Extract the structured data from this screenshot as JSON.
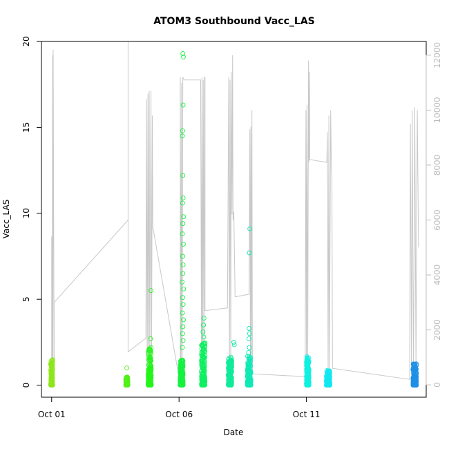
{
  "chart_data": {
    "type": "scatter",
    "title": "ATOM3 Southbound Vacc_LAS",
    "xlabel": "Date",
    "ylabel": "Vacc_LAS",
    "x_ticks": [
      "Oct 01",
      "Oct 06",
      "Oct 11"
    ],
    "x_tick_days": [
      1,
      6,
      11
    ],
    "xlim": [
      0.6,
      15.7
    ],
    "ylim": [
      -0.7,
      20
    ],
    "y_ticks": [
      0,
      5,
      10,
      15,
      20
    ],
    "y2_ticks": [
      0,
      2000,
      4000,
      6000,
      8000,
      10000,
      12000
    ],
    "y2lim": [
      -450,
      12500
    ],
    "grid": false,
    "scatter_clusters": [
      {
        "day": 1.0,
        "width": 0.07,
        "max": 1.5,
        "color": "#8ee619"
      },
      {
        "day": 3.95,
        "width": 0.08,
        "max": 0.5,
        "color": "#52f01a"
      },
      {
        "day": 4.85,
        "width": 0.12,
        "max": 2.2,
        "color": "#24f51a"
      },
      {
        "day": 6.1,
        "width": 0.12,
        "max": 1.5,
        "color": "#15f240"
      },
      {
        "day": 6.95,
        "width": 0.14,
        "max": 2.5,
        "color": "#10ef62"
      },
      {
        "day": 8.0,
        "width": 0.14,
        "max": 1.7,
        "color": "#10eb99"
      },
      {
        "day": 8.75,
        "width": 0.14,
        "max": 1.7,
        "color": "#10e9b5"
      },
      {
        "day": 11.05,
        "width": 0.1,
        "max": 1.6,
        "color": "#10f0e0"
      },
      {
        "day": 11.85,
        "width": 0.14,
        "max": 0.85,
        "color": "#10e8f0"
      },
      {
        "day": 15.25,
        "width": 0.14,
        "max": 1.3,
        "color": "#1e90e6"
      }
    ],
    "scatter_outliers": [
      {
        "day": 4.9,
        "y": 5.5,
        "color": "#24f51a"
      },
      {
        "day": 4.88,
        "y": 2.7,
        "color": "#24f51a"
      },
      {
        "day": 6.15,
        "y": 19.3,
        "color": "#15f240"
      },
      {
        "day": 6.17,
        "y": 19.1,
        "color": "#15f240"
      },
      {
        "day": 6.16,
        "y": 16.3,
        "color": "#15f240"
      },
      {
        "day": 6.14,
        "y": 14.8,
        "color": "#15f240"
      },
      {
        "day": 6.13,
        "y": 14.5,
        "color": "#15f240"
      },
      {
        "day": 6.15,
        "y": 12.2,
        "color": "#15f240"
      },
      {
        "day": 6.16,
        "y": 10.9,
        "color": "#15f240"
      },
      {
        "day": 6.14,
        "y": 10.6,
        "color": "#15f240"
      },
      {
        "day": 6.18,
        "y": 9.8,
        "color": "#15f240"
      },
      {
        "day": 6.15,
        "y": 9.4,
        "color": "#15f240"
      },
      {
        "day": 6.13,
        "y": 8.8,
        "color": "#15f240"
      },
      {
        "day": 6.17,
        "y": 8.2,
        "color": "#15f240"
      },
      {
        "day": 6.14,
        "y": 7.5,
        "color": "#15f240"
      },
      {
        "day": 6.16,
        "y": 7.0,
        "color": "#15f240"
      },
      {
        "day": 6.15,
        "y": 6.5,
        "color": "#15f240"
      },
      {
        "day": 6.12,
        "y": 6.0,
        "color": "#15f240"
      },
      {
        "day": 6.18,
        "y": 5.6,
        "color": "#15f240"
      },
      {
        "day": 6.14,
        "y": 5.1,
        "color": "#15f240"
      },
      {
        "day": 6.16,
        "y": 4.7,
        "color": "#15f240"
      },
      {
        "day": 6.13,
        "y": 4.2,
        "color": "#15f240"
      },
      {
        "day": 6.17,
        "y": 3.8,
        "color": "#15f240"
      },
      {
        "day": 6.15,
        "y": 3.4,
        "color": "#15f240"
      },
      {
        "day": 6.14,
        "y": 3.0,
        "color": "#15f240"
      },
      {
        "day": 6.16,
        "y": 2.6,
        "color": "#15f240"
      },
      {
        "day": 6.13,
        "y": 2.2,
        "color": "#15f240"
      },
      {
        "day": 6.98,
        "y": 3.9,
        "color": "#10ef62"
      },
      {
        "day": 6.96,
        "y": 3.5,
        "color": "#10ef62"
      },
      {
        "day": 6.94,
        "y": 3.1,
        "color": "#10ef62"
      },
      {
        "day": 6.97,
        "y": 2.8,
        "color": "#10ef62"
      },
      {
        "day": 8.15,
        "y": 2.5,
        "color": "#10eb99"
      },
      {
        "day": 8.17,
        "y": 2.35,
        "color": "#10eb99"
      },
      {
        "day": 8.78,
        "y": 9.1,
        "color": "#10e9b5"
      },
      {
        "day": 8.76,
        "y": 7.7,
        "color": "#10e9b5"
      },
      {
        "day": 8.75,
        "y": 3.3,
        "color": "#10e9b5"
      },
      {
        "day": 8.77,
        "y": 3.0,
        "color": "#10e9b5"
      },
      {
        "day": 8.74,
        "y": 2.7,
        "color": "#10e9b5"
      },
      {
        "day": 8.76,
        "y": 2.2,
        "color": "#10e9b5"
      },
      {
        "day": 8.73,
        "y": 1.9,
        "color": "#10e9b5"
      },
      {
        "day": 3.95,
        "y": 1.0,
        "color": "#52f01a"
      },
      {
        "day": 11.02,
        "y": 1.65,
        "color": "#10f0e0"
      }
    ],
    "secondary_series_color": "#c8c8c8",
    "secondary_series": [
      [
        1.0,
        0
      ],
      [
        1.0,
        5400
      ],
      [
        1.02,
        0
      ],
      [
        1.04,
        12000
      ],
      [
        1.05,
        0
      ],
      [
        1.06,
        12200
      ],
      [
        1.1,
        0
      ],
      [
        1.1,
        3000
      ],
      [
        4.0,
        6000
      ],
      [
        4.0,
        12500
      ],
      [
        4.0,
        5900
      ],
      [
        4.0,
        1200
      ],
      [
        4.7,
        1700
      ],
      [
        4.72,
        10400
      ],
      [
        4.75,
        300
      ],
      [
        4.78,
        10600
      ],
      [
        4.8,
        500
      ],
      [
        4.83,
        10700
      ],
      [
        4.85,
        600
      ],
      [
        4.9,
        10700
      ],
      [
        4.92,
        400
      ],
      [
        4.95,
        9800
      ],
      [
        4.97,
        5700
      ],
      [
        4.98,
        5700
      ],
      [
        6.05,
        0
      ],
      [
        6.05,
        11200
      ],
      [
        6.08,
        200
      ],
      [
        6.1,
        11000
      ],
      [
        6.12,
        400
      ],
      [
        6.15,
        11200
      ],
      [
        6.2,
        11100
      ],
      [
        6.85,
        11100
      ],
      [
        6.88,
        400
      ],
      [
        6.9,
        11200
      ],
      [
        6.93,
        500
      ],
      [
        6.95,
        11100
      ],
      [
        6.98,
        600
      ],
      [
        7.0,
        11200
      ],
      [
        7.02,
        11200
      ],
      [
        7.02,
        2700
      ],
      [
        7.9,
        2800
      ],
      [
        7.95,
        11200
      ],
      [
        7.98,
        300
      ],
      [
        8.0,
        11100
      ],
      [
        8.03,
        500
      ],
      [
        8.05,
        11400
      ],
      [
        8.08,
        6200
      ],
      [
        8.1,
        12000
      ],
      [
        8.12,
        6000
      ],
      [
        8.15,
        6300
      ],
      [
        8.2,
        3200
      ],
      [
        8.75,
        3300
      ],
      [
        8.78,
        9300
      ],
      [
        8.8,
        500
      ],
      [
        8.82,
        9400
      ],
      [
        8.84,
        700
      ],
      [
        8.86,
        10000
      ],
      [
        8.88,
        400
      ],
      [
        10.95,
        300
      ],
      [
        10.98,
        10000
      ],
      [
        11.0,
        500
      ],
      [
        11.02,
        10200
      ],
      [
        11.05,
        500
      ],
      [
        11.08,
        11800
      ],
      [
        11.1,
        8100
      ],
      [
        11.12,
        11400
      ],
      [
        11.13,
        8200
      ],
      [
        11.8,
        8100
      ],
      [
        11.82,
        9200
      ],
      [
        11.85,
        500
      ],
      [
        11.88,
        9800
      ],
      [
        11.9,
        300
      ],
      [
        11.95,
        10000
      ],
      [
        11.98,
        7800
      ],
      [
        12.0,
        7700
      ],
      [
        12.02,
        600
      ],
      [
        15.05,
        200
      ],
      [
        15.08,
        9500
      ],
      [
        15.12,
        300
      ],
      [
        15.15,
        10000
      ],
      [
        15.2,
        200
      ],
      [
        15.25,
        10100
      ],
      [
        15.3,
        500
      ],
      [
        15.35,
        10000
      ],
      [
        15.4,
        5000
      ]
    ]
  }
}
